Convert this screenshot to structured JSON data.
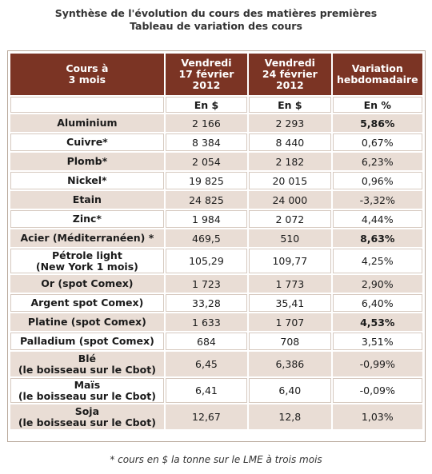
{
  "title": {
    "line1": "Synthèse de l'évolution du cours des matières premières",
    "line2": "Tableau de variation des cours"
  },
  "headers": {
    "col1": [
      "Cours à",
      "3 mois"
    ],
    "col2": [
      "Vendredi",
      "17 février",
      "2012"
    ],
    "col3": [
      "Vendredi",
      "24 février",
      "2012"
    ],
    "col4": [
      "Variation",
      "hebdomadaire"
    ]
  },
  "units": {
    "col2": "En $",
    "col3": "En $",
    "col4": "En %"
  },
  "rows": [
    {
      "name": [
        "Aluminium"
      ],
      "v1": "2 166",
      "v2": "2 293",
      "var": "5,86%",
      "bold": true,
      "shade": true
    },
    {
      "name": [
        "Cuivre*"
      ],
      "v1": "8 384",
      "v2": "8 440",
      "var": "0,67%",
      "bold": false,
      "shade": false
    },
    {
      "name": [
        "Plomb*"
      ],
      "v1": "2 054",
      "v2": "2 182",
      "var": "6,23%",
      "bold": false,
      "shade": true
    },
    {
      "name": [
        "Nickel*"
      ],
      "v1": "19 825",
      "v2": "20 015",
      "var": "0,96%",
      "bold": false,
      "shade": false
    },
    {
      "name": [
        "Etain"
      ],
      "v1": "24 825",
      "v2": "24 000",
      "var": "-3,32%",
      "bold": false,
      "shade": true
    },
    {
      "name": [
        "Zinc*"
      ],
      "v1": "1 984",
      "v2": "2 072",
      "var": "4,44%",
      "bold": false,
      "shade": false
    },
    {
      "name": [
        "Acier (Méditerranéen) *"
      ],
      "v1": "469,5",
      "v2": "510",
      "var": "8,63%",
      "bold": true,
      "shade": true
    },
    {
      "name": [
        "Pétrole light",
        "(New York 1 mois)"
      ],
      "v1": "105,29",
      "v2": "109,77",
      "var": "4,25%",
      "bold": false,
      "shade": false
    },
    {
      "name": [
        "Or (spot Comex)"
      ],
      "v1": "1 723",
      "v2": "1 773",
      "var": "2,90%",
      "bold": false,
      "shade": true
    },
    {
      "name": [
        "Argent spot Comex)"
      ],
      "v1": "33,28",
      "v2": "35,41",
      "var": "6,40%",
      "bold": false,
      "shade": false
    },
    {
      "name": [
        "Platine (spot Comex)"
      ],
      "v1": "1 633",
      "v2": "1 707",
      "var": "4,53%",
      "bold": true,
      "shade": true
    },
    {
      "name": [
        "Palladium (spot Comex)"
      ],
      "v1": "684",
      "v2": "708",
      "var": "3,51%",
      "bold": false,
      "shade": false
    },
    {
      "name": [
        "Blé",
        "(le boisseau sur le Cbot)"
      ],
      "v1": "6,45",
      "v2": "6,386",
      "var": "-0,99%",
      "bold": false,
      "shade": true
    },
    {
      "name": [
        "Maïs",
        "(le boisseau sur le Cbot)"
      ],
      "v1": "6,41",
      "v2": "6,40",
      "var": "-0,09%",
      "bold": false,
      "shade": false
    },
    {
      "name": [
        "Soja",
        "(le boisseau sur le Cbot)"
      ],
      "v1": "12,67",
      "v2": "12,8",
      "var": "1,03%",
      "bold": false,
      "shade": true
    }
  ],
  "footnote": "* cours en $ la tonne sur le LME à trois mois"
}
